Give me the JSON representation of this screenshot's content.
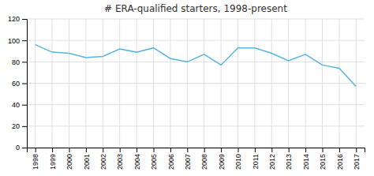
{
  "chart_data": {
    "type": "line",
    "title": "# ERA-qualified starters, 1998-present",
    "x": [
      1998,
      1999,
      2000,
      2001,
      2002,
      2003,
      2004,
      2005,
      2006,
      2007,
      2008,
      2009,
      2010,
      2011,
      2012,
      2013,
      2014,
      2015,
      2016,
      2017
    ],
    "values": [
      96,
      89,
      88,
      84,
      85,
      92,
      89,
      93,
      83,
      80,
      87,
      77,
      93,
      93,
      88,
      81,
      87,
      77,
      74,
      57
    ],
    "color": "#5ab4e0",
    "xlim": [
      1997.5,
      2017.5
    ],
    "xticks": [
      1998,
      1999,
      2000,
      2001,
      2002,
      2003,
      2004,
      2005,
      2006,
      2007,
      2008,
      2009,
      2010,
      2011,
      2012,
      2013,
      2014,
      2015,
      2016,
      2017
    ],
    "ylim": [
      0,
      120
    ],
    "yticks": [
      0,
      20,
      40,
      60,
      80,
      100,
      120
    ],
    "grid": true
  }
}
